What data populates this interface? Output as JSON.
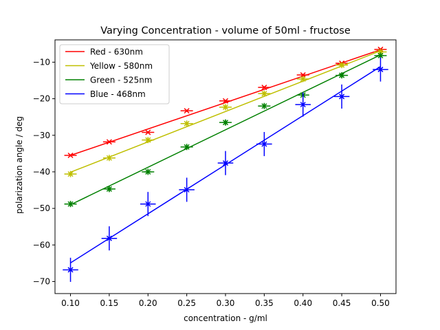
{
  "chart_data": {
    "type": "line",
    "title": "Varying Concentration - volume  of 50ml - fructose",
    "xlabel": "concentration - g/ml",
    "ylabel": "polarization angle / deg",
    "xlim": [
      0.08,
      0.52
    ],
    "ylim": [
      -73.3,
      -3.9
    ],
    "xticks": [
      0.1,
      0.15,
      0.2,
      0.25,
      0.3,
      0.35,
      0.4,
      0.45,
      0.5
    ],
    "xtick_labels": [
      "0.10",
      "0.15",
      "0.20",
      "0.25",
      "0.30",
      "0.35",
      "0.40",
      "0.45",
      "0.50"
    ],
    "yticks": [
      -70,
      -60,
      -50,
      -40,
      -30,
      -20,
      -10
    ],
    "ytick_labels": [
      "−70",
      "−60",
      "−50",
      "−40",
      "−30",
      "−20",
      "−10"
    ],
    "legend_position": "top-left",
    "x": [
      0.1,
      0.15,
      0.2,
      0.25,
      0.3,
      0.35,
      0.4,
      0.45,
      0.5
    ],
    "series": [
      {
        "name": "Red - 630nm",
        "color": "#ff0000",
        "marker": "x",
        "values": [
          -35.5,
          -31.8,
          -29.2,
          -23.3,
          -20.6,
          -16.9,
          -13.5,
          -10.3,
          -6.5
        ],
        "yerr": [
          0.3,
          0.3,
          0.3,
          0.3,
          0.3,
          0.3,
          0.3,
          0.3,
          0.3
        ],
        "xerr": 0.008,
        "fit": [
          -35.5,
          -6.6
        ]
      },
      {
        "name": "Yellow - 580nm",
        "color": "#bfbf00",
        "marker": "star",
        "values": [
          -40.6,
          -36.2,
          -31.3,
          -26.8,
          -22.3,
          -18.6,
          -14.6,
          -10.8,
          -7.2
        ],
        "yerr": [
          0.5,
          0.5,
          0.5,
          0.5,
          0.5,
          0.5,
          0.5,
          0.5,
          0.5
        ],
        "xerr": 0.008,
        "fit": [
          -40.1,
          -6.9
        ]
      },
      {
        "name": "Green - 525nm",
        "color": "#008000",
        "marker": "star",
        "values": [
          -48.8,
          -44.7,
          -40.0,
          -33.2,
          -26.5,
          -22.0,
          -19.0,
          -13.6,
          -8.2
        ],
        "yerr": [
          0.8,
          0.8,
          0.8,
          0.8,
          0.8,
          0.8,
          0.8,
          0.8,
          0.8
        ],
        "xerr": 0.008,
        "fit": [
          -49.0,
          -8.0
        ]
      },
      {
        "name": "Blue - 468nm",
        "color": "#0000ff",
        "marker": "x",
        "values": [
          -66.8,
          -58.2,
          -48.8,
          -44.9,
          -37.6,
          -32.4,
          -21.6,
          -19.4,
          -12.0
        ],
        "yerr": [
          3.3,
          3.3,
          3.3,
          3.3,
          3.3,
          3.3,
          3.3,
          3.3,
          3.3
        ],
        "xerr": 0.01,
        "fit": [
          -64.9,
          -11.2
        ]
      }
    ]
  }
}
